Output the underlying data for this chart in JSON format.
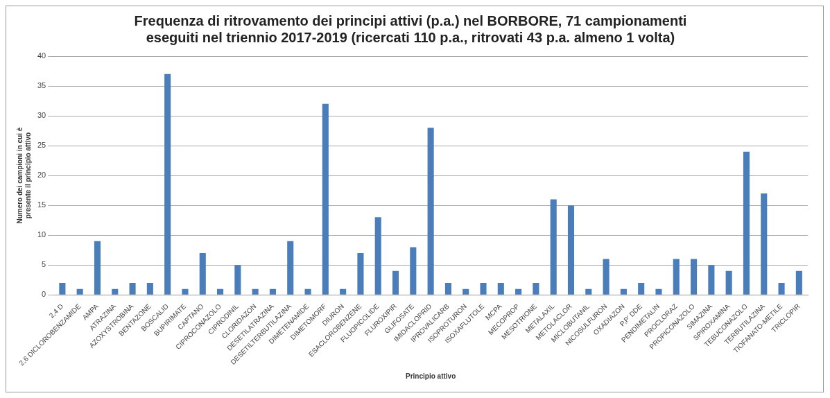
{
  "chart_data": {
    "type": "bar",
    "title": "Frequenza di ritrovamento dei principi attivi (p.a.) nel BORBORE, 71 campionamenti eseguiti nel triennio 2017-2019 (ricercati 110 p.a., ritrovati 43 p.a. almeno 1 volta)",
    "xlabel": "Principio attivo",
    "ylabel": "Numero dei campioni in cui è presente il principio attivo",
    "categories": [
      "2,4 D",
      "2,6 DICLOROBENZAMIDE",
      "AMPA",
      "ATRAZINA",
      "AZOXYSTROBINA",
      "BENTAZONE",
      "BOSCALID",
      "BUPIRIMATE",
      "CAPTANO",
      "CIPROCONAZOLO",
      "CIPRODINIL",
      "CLORIDAZON",
      "DESETILATRAZINA",
      "DESETILTERBUTILAZINA",
      "DIMETENAMIDE",
      "DIMETOMORF",
      "DIURON",
      "ESACLOROBENZENE",
      "FLUOPICOLIDE",
      "FLUROXIPIR",
      "GLIFOSATE",
      "IMIDACLOPRID",
      "IPROVALICARB",
      "ISOPROTURON",
      "ISOXAFLUTOLE",
      "MCPA",
      "MECOPROP",
      "MESOTRIONE",
      "METALAXIL",
      "METOLACLOR",
      "MICLOBUTANIL",
      "NICOSULFURON",
      "OXADIAZON",
      "P,P' DDE",
      "PENDIMETALIN",
      "PROCLORAZ",
      "PROPICONAZOLO",
      "SIMAZINA",
      "SPIROXAMINA",
      "TEBUCONAZOLO",
      "TERBUTILAZINA",
      "TIOFANATO-METILE",
      "TRICLOPIR"
    ],
    "values": [
      2,
      1,
      9,
      1,
      2,
      2,
      37,
      1,
      7,
      1,
      5,
      1,
      1,
      9,
      1,
      32,
      1,
      7,
      13,
      4,
      8,
      28,
      2,
      1,
      2,
      2,
      1,
      2,
      16,
      15,
      1,
      6,
      1,
      2,
      1,
      6,
      6,
      5,
      4,
      24,
      17,
      2,
      4
    ],
    "color": "#4a7ebb",
    "ylim": [
      0,
      40
    ],
    "yticks": [
      0,
      5,
      10,
      15,
      20,
      25,
      30,
      35,
      40
    ],
    "grid": "y",
    "legend": false
  }
}
